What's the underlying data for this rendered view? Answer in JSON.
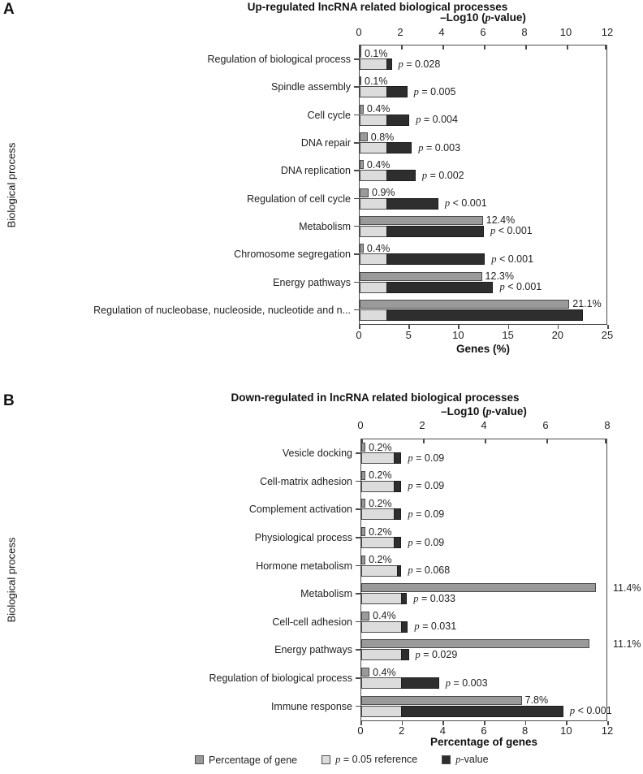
{
  "panels": {
    "a_letter": "A",
    "b_letter": "B"
  },
  "colors": {
    "percentage_bar": "#9a9a9a",
    "reference_bar": "#dcdcdc",
    "pvalue_bar": "#2e2e2e",
    "axis_line": "#4c4c4c"
  },
  "legend": {
    "items": [
      {
        "label": "Percentage of gene",
        "color": "#9a9a9a"
      },
      {
        "label": "p = 0.05 reference",
        "color": "#dcdcdc"
      },
      {
        "label": "p-value",
        "color": "#2e2e2e"
      }
    ]
  },
  "chart_data": [
    {
      "type": "bar",
      "panel": "A",
      "title": "Up-regulated lncRNA related biological processes",
      "ylabel": "Biological process",
      "top_axis": {
        "label": "–Log10 (p-value)",
        "ticks": [
          0,
          2,
          4,
          6,
          8,
          10,
          12
        ],
        "max": 12
      },
      "bottom_axis": {
        "label": "Genes (%)",
        "ticks": [
          0,
          5,
          10,
          15,
          20,
          25
        ],
        "max": 25
      },
      "reference_neg_log10": 1.301,
      "legend_note": "gray bar = gene %, light bar = p=0.05 reference, dark bar = -log10 p-value",
      "rows": [
        {
          "category": "Regulation of biological process",
          "gene_pct": 0.1,
          "pct_label": "0.1%",
          "p_label": "p = 0.028",
          "neg_log10_p": 1.55
        },
        {
          "category": "Spindle assembly",
          "gene_pct": 0.1,
          "pct_label": "0.1%",
          "p_label": "p = 0.005",
          "neg_log10_p": 2.3
        },
        {
          "category": "Cell cycle",
          "gene_pct": 0.4,
          "pct_label": "0.4%",
          "p_label": "p = 0.004",
          "neg_log10_p": 2.4
        },
        {
          "category": "DNA repair",
          "gene_pct": 0.8,
          "pct_label": "0.8%",
          "p_label": "p = 0.003",
          "neg_log10_p": 2.52
        },
        {
          "category": "DNA replication",
          "gene_pct": 0.4,
          "pct_label": "0.4%",
          "p_label": "p = 0.002",
          "neg_log10_p": 2.7
        },
        {
          "category": "Regulation of cell cycle",
          "gene_pct": 0.9,
          "pct_label": "0.9%",
          "p_label": "p < 0.001",
          "neg_log10_p": 3.8
        },
        {
          "category": "Metabolism",
          "gene_pct": 12.4,
          "pct_label": "12.4%",
          "p_label": "p < 0.001",
          "neg_log10_p": 6.0
        },
        {
          "category": "Chromosome segregation",
          "gene_pct": 0.4,
          "pct_label": "0.4%",
          "p_label": "p < 0.001",
          "neg_log10_p": 6.05
        },
        {
          "category": "Energy pathways",
          "gene_pct": 12.3,
          "pct_label": "12.3%",
          "p_label": "p < 0.001",
          "neg_log10_p": 6.45
        },
        {
          "category": "Regulation of nucleobase, nucleoside, nucleotide and n...",
          "gene_pct": 21.1,
          "pct_label": "21.1%",
          "p_label": "",
          "neg_log10_p": 10.8
        }
      ]
    },
    {
      "type": "bar",
      "panel": "B",
      "title": "Down-regulated in lncRNA related biological processes",
      "ylabel": "Biological process",
      "top_axis": {
        "label": "–Log10 (p-value)",
        "ticks": [
          0,
          2,
          4,
          6,
          8
        ],
        "max": 8
      },
      "bottom_axis": {
        "label": "Percentage of genes",
        "ticks": [
          0,
          2,
          4,
          6,
          8,
          10,
          12
        ],
        "max": 12
      },
      "reference_neg_log10": 1.301,
      "rows": [
        {
          "category": "Vesicle docking",
          "gene_pct": 0.2,
          "pct_label": "0.2%",
          "p_label": "p = 0.09",
          "neg_log10_p": 1.05
        },
        {
          "category": "Cell-matrix adhesion",
          "gene_pct": 0.2,
          "pct_label": "0.2%",
          "p_label": "p = 0.09",
          "neg_log10_p": 1.05
        },
        {
          "category": "Complement activation",
          "gene_pct": 0.2,
          "pct_label": "0.2%",
          "p_label": "p = 0.09",
          "neg_log10_p": 1.05
        },
        {
          "category": "Physiological process",
          "gene_pct": 0.2,
          "pct_label": "0.2%",
          "p_label": "p = 0.09",
          "neg_log10_p": 1.05
        },
        {
          "category": "Hormone metabolism",
          "gene_pct": 0.2,
          "pct_label": "0.2%",
          "p_label": "p = 0.068",
          "neg_log10_p": 1.17
        },
        {
          "category": "Metabolism",
          "gene_pct": 11.4,
          "pct_label": "11.4%",
          "p_label": "p = 0.033",
          "neg_log10_p": 1.48,
          "pct_label_outside": true
        },
        {
          "category": "Cell-cell adhesion",
          "gene_pct": 0.4,
          "pct_label": "0.4%",
          "p_label": "p = 0.031",
          "neg_log10_p": 1.51
        },
        {
          "category": "Energy pathways",
          "gene_pct": 11.1,
          "pct_label": "11.1%",
          "p_label": "p = 0.029",
          "neg_log10_p": 1.54,
          "pct_label_outside": true
        },
        {
          "category": "Regulation of biological process",
          "gene_pct": 0.4,
          "pct_label": "0.4%",
          "p_label": "p = 0.003",
          "neg_log10_p": 2.52
        },
        {
          "category": "Immune response",
          "gene_pct": 7.8,
          "pct_label": "7.8%",
          "p_label": "p < 0.001",
          "neg_log10_p": 6.55
        }
      ]
    }
  ]
}
